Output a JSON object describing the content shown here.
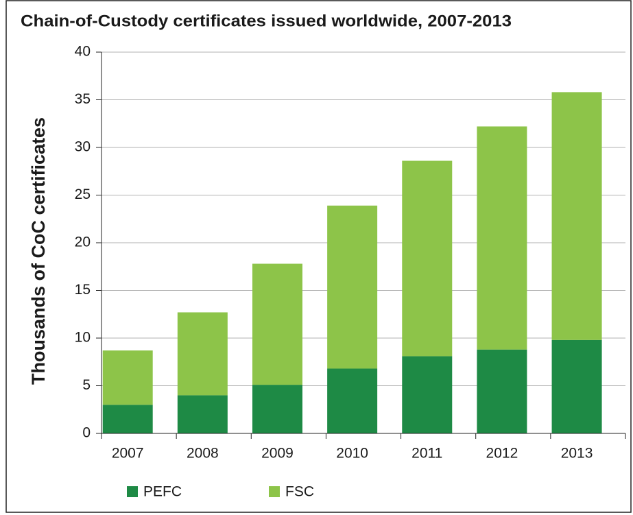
{
  "chart_data": {
    "type": "stacked_bar",
    "title": "Chain-of-Custody certificates issued worldwide, 2007-2013",
    "y_label": "Thousands of  CoC certificates",
    "categories": [
      "2007",
      "2008",
      "2009",
      "2010",
      "2011",
      "2012",
      "2013"
    ],
    "series": [
      {
        "name": "PEFC",
        "color": "#1e8a45",
        "values": [
          3.0,
          4.0,
          5.1,
          6.8,
          8.1,
          8.8,
          9.8
        ]
      },
      {
        "name": "FSC",
        "color": "#8dc449",
        "values": [
          5.7,
          8.7,
          12.7,
          17.1,
          20.5,
          23.4,
          26.0
        ]
      }
    ],
    "ylim": [
      0,
      40
    ],
    "yticks": [
      0,
      5,
      10,
      15,
      20,
      25,
      30,
      35,
      40
    ],
    "grid": true,
    "legend": "bottom"
  }
}
